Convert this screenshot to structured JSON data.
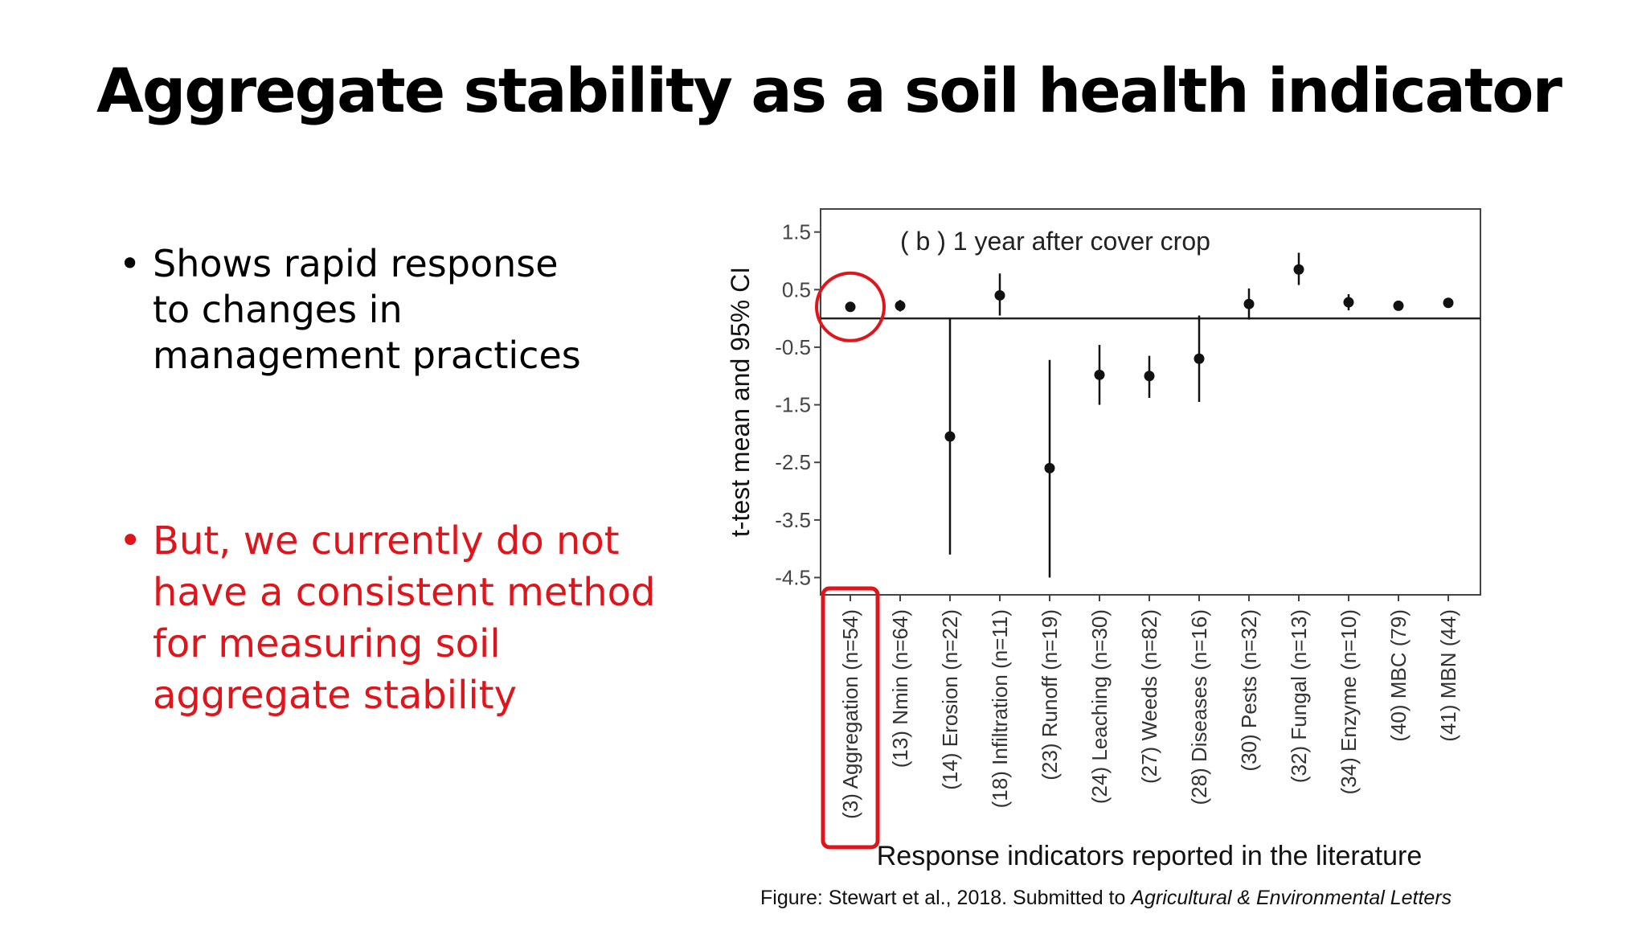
{
  "slide": {
    "title": "Aggregate stability as a soil health indicator",
    "bullets": [
      {
        "text": "Shows rapid response to changes in management practices",
        "color": "#000000"
      },
      {
        "text": "But, we currently do not have a consistent method for measuring soil aggregate stability",
        "color": "#e0151b"
      }
    ],
    "caption_prefix": "Figure: Stewart et al., 2018. Submitted to ",
    "caption_journal": "Agricultural & Environmental Letters",
    "highlight_color": "#e0151b"
  },
  "chart_data": {
    "type": "scatter",
    "title": "( b ) 1 year after cover crop",
    "xlabel": "Response indicators reported in the literature",
    "ylabel": "t-test mean and 95% CI",
    "ylim": [
      -4.8,
      1.9
    ],
    "yticks": [
      1.5,
      0.5,
      -0.5,
      -1.5,
      -2.5,
      -3.5,
      -4.5
    ],
    "ytick_labels": [
      "1.5",
      "0.5",
      "-0.5",
      "-1.5",
      "-2.5",
      "-3.5",
      "-4.5"
    ],
    "reference_line": 0,
    "categories": [
      "(3) Aggregation (n=54)",
      "(13) Nmin (n=64)",
      "(14) Erosion (n=22)",
      "(18) Infiltration (n=11)",
      "(23) Runoff (n=19)",
      "(24) Leaching (n=30)",
      "(27) Weeds (n=82)",
      "(28) Diseases (n=16)",
      "(30) Pests (n=32)",
      "(32) Fungal (n=13)",
      "(34) Enzyme (n=10)",
      "(40) MBC (79)",
      "(41) MBN (44)"
    ],
    "series": [
      {
        "mean": [
          0.2,
          0.22,
          -2.05,
          0.4,
          -2.6,
          -0.98,
          -1.0,
          -0.7,
          0.25,
          0.85,
          0.28,
          0.22,
          0.27
        ],
        "lower": [
          0.2,
          0.12,
          -4.1,
          0.05,
          -4.5,
          -1.5,
          -1.38,
          -1.45,
          -0.02,
          0.58,
          0.14,
          0.22,
          0.22
        ],
        "upper": [
          0.2,
          0.32,
          0.0,
          0.78,
          -0.72,
          -0.46,
          -0.65,
          0.05,
          0.52,
          1.14,
          0.42,
          0.22,
          0.32
        ]
      }
    ],
    "highlighted_category": "(3) Aggregation (n=54)",
    "grid": false
  }
}
